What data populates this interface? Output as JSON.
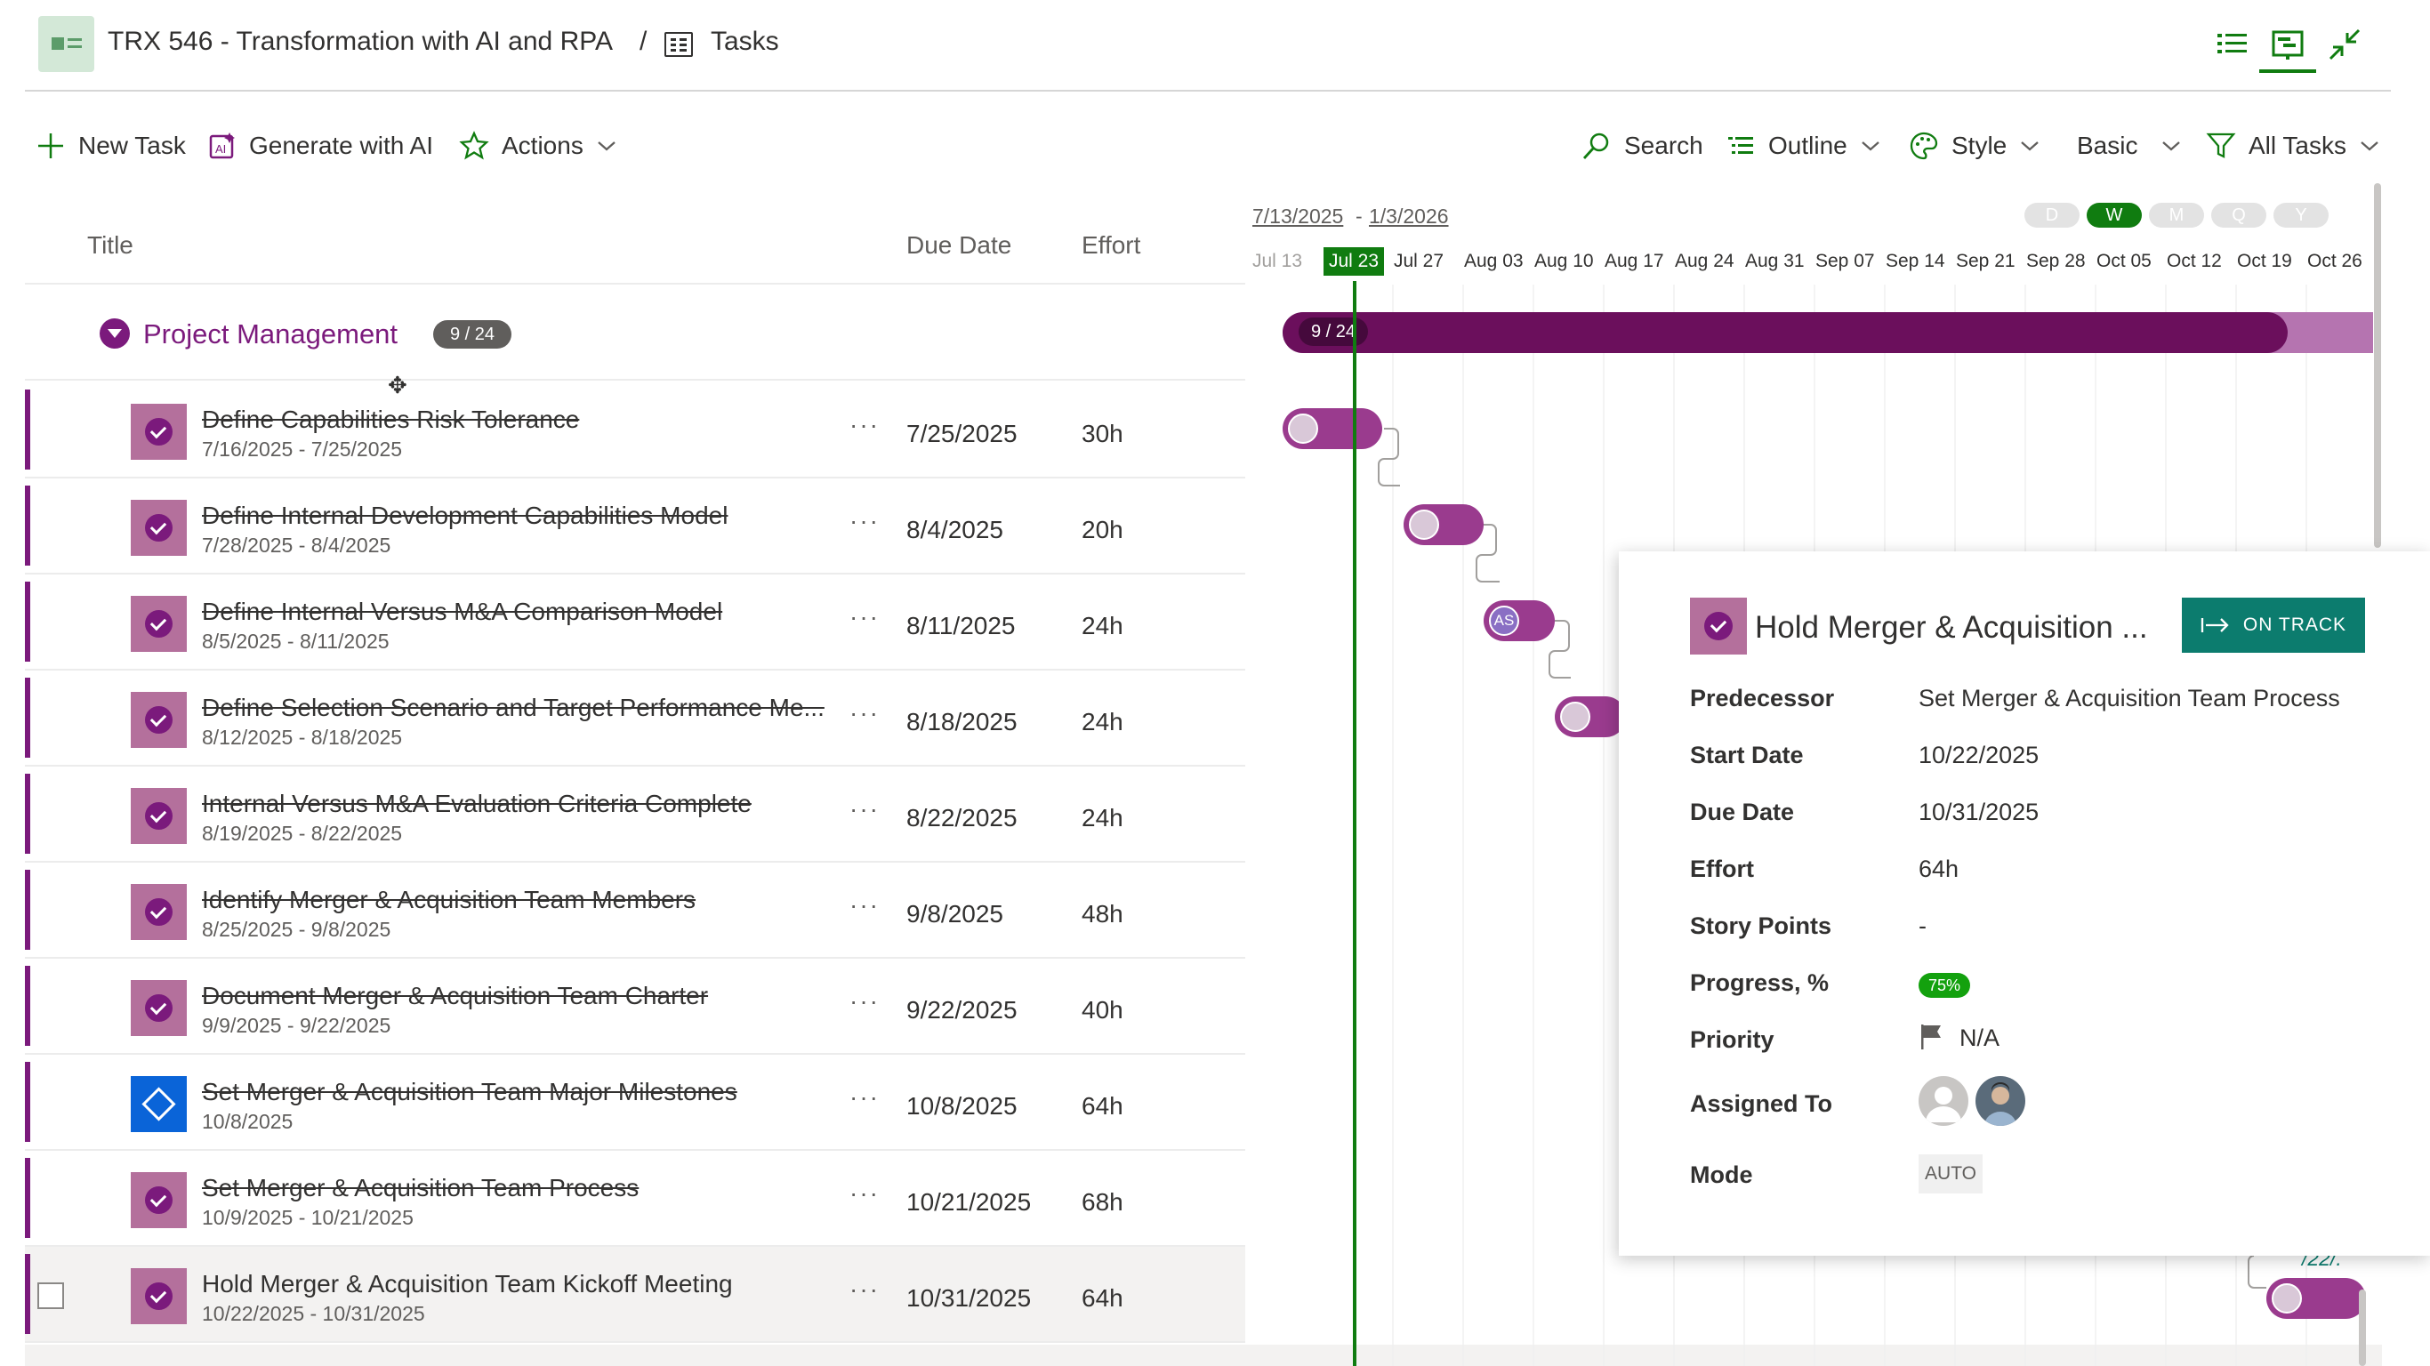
{
  "header": {
    "project_title": "TRX 546 - Transformation with AI and RPA",
    "separator": "/",
    "section": "Tasks",
    "view_buttons": [
      "list-view-icon",
      "gantt-view-icon",
      "collapse-icon"
    ]
  },
  "toolbar": {
    "new_task": "New Task",
    "generate_ai": "Generate with AI",
    "actions": "Actions",
    "search": "Search",
    "outline": "Outline",
    "style": "Style",
    "basic": "Basic",
    "filter": "All Tasks"
  },
  "grid": {
    "columns": {
      "title": "Title",
      "due": "Due Date",
      "effort": "Effort"
    },
    "group": {
      "name": "Project Management",
      "badge": "9 / 24"
    },
    "rows": [
      {
        "name": "Define Capabilities Risk Tolerance",
        "range": "7/16/2025 - 7/25/2025",
        "due": "7/25/2025",
        "effort": "30h",
        "more": "···"
      },
      {
        "name": "Define Internal Development Capabilities Model",
        "range": "7/28/2025 - 8/4/2025",
        "due": "8/4/2025",
        "effort": "20h",
        "more": "···"
      },
      {
        "name": "Define Internal Versus M&A Comparison Model",
        "range": "8/5/2025 - 8/11/2025",
        "due": "8/11/2025",
        "effort": "24h",
        "more": "···"
      },
      {
        "name": "Define Selection Scenario and Target Performance Me...",
        "range": "8/12/2025 - 8/18/2025",
        "due": "8/18/2025",
        "effort": "24h",
        "more": "···"
      },
      {
        "name": "Internal Versus M&A Evaluation Criteria Complete",
        "range": "8/19/2025 - 8/22/2025",
        "due": "8/22/2025",
        "effort": "24h",
        "more": "···"
      },
      {
        "name": "Identify Merger & Acquisition Team Members",
        "range": "8/25/2025 - 9/8/2025",
        "due": "9/8/2025",
        "effort": "48h",
        "more": "···"
      },
      {
        "name": "Document Merger & Acquisition Team Charter",
        "range": "9/9/2025 - 9/22/2025",
        "due": "9/22/2025",
        "effort": "40h",
        "more": "···"
      },
      {
        "name": "Set Merger & Acquisition Team Major Milestones",
        "range": "10/8/2025",
        "due": "10/8/2025",
        "effort": "64h",
        "more": "···"
      },
      {
        "name": "Set Merger & Acquisition Team Process",
        "range": "10/9/2025 - 10/21/2025",
        "due": "10/21/2025",
        "effort": "68h",
        "more": "···"
      },
      {
        "name": "Hold Merger & Acquisition Team Kickoff Meeting",
        "range": "10/22/2025 - 10/31/2025",
        "due": "10/31/2025",
        "effort": "64h",
        "more": "···"
      }
    ]
  },
  "timeline": {
    "range_start": "7/13/2025",
    "range_dash": "-",
    "range_end": "1/3/2026",
    "scales": [
      "D",
      "W",
      "M",
      "Q",
      "Y"
    ],
    "active_scale": "W",
    "weeks": [
      "Jul 13",
      "Jul 23",
      "Jul 27",
      "Aug 03",
      "Aug 10",
      "Aug 17",
      "Aug 24",
      "Aug 31",
      "Sep 07",
      "Sep 14",
      "Sep 21",
      "Sep 28",
      "Oct 05",
      "Oct 12",
      "Oct 19",
      "Oct 26"
    ],
    "today_label": "Jul 23",
    "summary_label": "9 / 24",
    "assignee_initials": "AS",
    "partial_date": "/22/."
  },
  "card": {
    "title": "Hold Merger & Acquisition ...",
    "status": "ON TRACK",
    "fields": {
      "predecessor_label": "Predecessor",
      "predecessor": "Set Merger & Acquisition Team Process",
      "start_label": "Start Date",
      "start": "10/22/2025",
      "due_label": "Due Date",
      "due": "10/31/2025",
      "effort_label": "Effort",
      "effort": "64h",
      "points_label": "Story Points",
      "points": "-",
      "progress_label": "Progress, %",
      "progress": "75%",
      "priority_label": "Priority",
      "priority": "N/A",
      "assigned_label": "Assigned To",
      "mode_label": "Mode",
      "mode": "AUTO"
    }
  },
  "colors": {
    "accent_green": "#107c10",
    "project_purple": "#7b1a7c",
    "summary_bar": "#6b0f5c",
    "status_teal": "#0c7c6e",
    "milestone_blue": "#0a64d8"
  }
}
